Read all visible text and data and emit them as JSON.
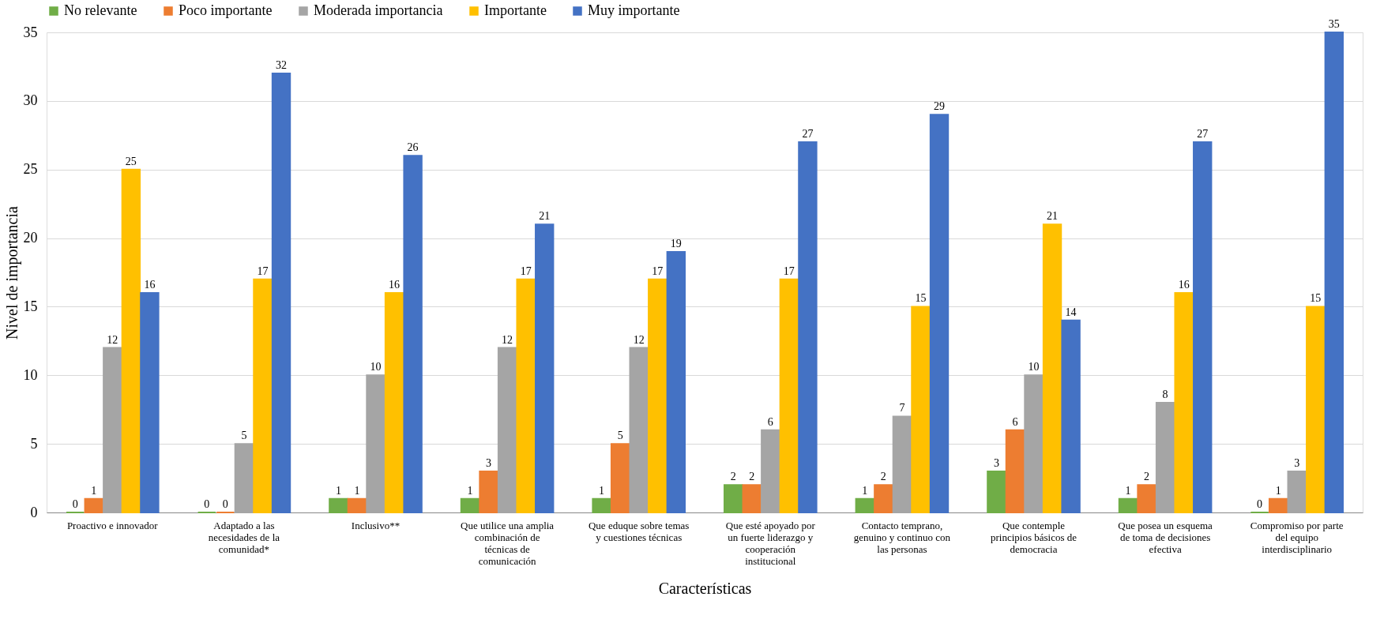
{
  "chart_data": {
    "type": "bar",
    "xlabel": "Características",
    "ylabel": "Nivel de importancia",
    "categories": [
      "Proactivo e innovador",
      "Adaptado a las necesidades de la comunidad*",
      "Inclusivo**",
      "Que utilice una amplia combinación de técnicas de comunicación",
      "Que eduque sobre temas y cuestiones técnicas",
      "Que esté apoyado por un fuerte liderazgo y cooperación institucional",
      "Contacto temprano, genuino y continuo con las personas",
      "Que contemple principios básicos de democracia",
      "Que posea un esquema de toma de decisiones efectiva",
      "Compromiso por parte del equipo interdisciplinario"
    ],
    "series": [
      {
        "name": "No relevante",
        "color": "#70ad47",
        "values": [
          0,
          0,
          1,
          1,
          1,
          2,
          1,
          3,
          1,
          0
        ]
      },
      {
        "name": "Poco importante",
        "color": "#ed7d31",
        "values": [
          1,
          0,
          1,
          3,
          5,
          2,
          2,
          6,
          2,
          1
        ]
      },
      {
        "name": "Moderada importancia",
        "color": "#a5a5a5",
        "values": [
          12,
          5,
          10,
          12,
          12,
          6,
          7,
          10,
          8,
          3
        ]
      },
      {
        "name": "Importante",
        "color": "#ffc000",
        "values": [
          25,
          17,
          16,
          17,
          17,
          17,
          15,
          21,
          16,
          15
        ]
      },
      {
        "name": "Muy importante",
        "color": "#4472c4",
        "values": [
          16,
          32,
          26,
          21,
          19,
          27,
          29,
          14,
          27,
          35
        ]
      }
    ],
    "ylim": [
      0,
      35
    ],
    "yticks": [
      0,
      5,
      10,
      15,
      20,
      25,
      30,
      35
    ],
    "grid": "y",
    "legend": "top",
    "data_labels": true
  }
}
